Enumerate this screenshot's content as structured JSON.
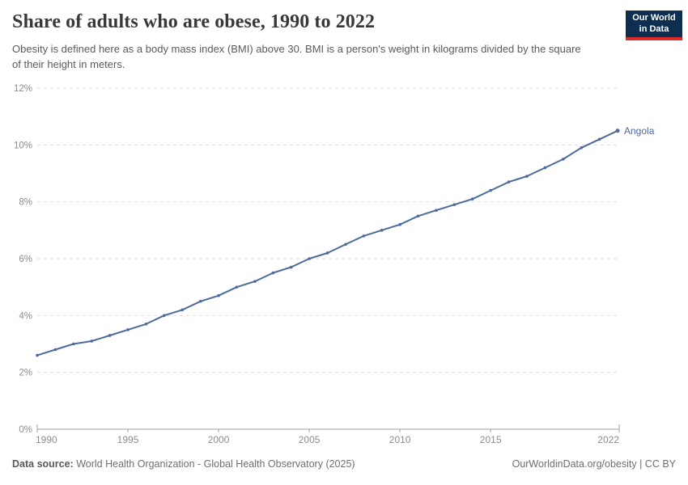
{
  "header": {
    "title": "Share of adults who are obese, 1990 to 2022",
    "subtitle": "Obesity is defined here as a body mass index (BMI) above 30. BMI is a person's weight in kilograms divided by the square of their height in meters.",
    "logo": {
      "line1": "Our World",
      "line2": "in Data",
      "bg_color": "#0D2E4E",
      "accent_color": "#DC2C2C"
    }
  },
  "chart_data": {
    "type": "line",
    "title": "Share of adults who are obese, 1990 to 2022",
    "x": [
      1990,
      1991,
      1992,
      1993,
      1994,
      1995,
      1996,
      1997,
      1998,
      1999,
      2000,
      2001,
      2002,
      2003,
      2004,
      2005,
      2006,
      2007,
      2008,
      2009,
      2010,
      2011,
      2012,
      2013,
      2014,
      2015,
      2016,
      2017,
      2018,
      2019,
      2020,
      2021,
      2022
    ],
    "series": [
      {
        "name": "Angola",
        "color": "#4C6A9C",
        "values": [
          2.6,
          2.8,
          3.0,
          3.1,
          3.3,
          3.5,
          3.7,
          4.0,
          4.2,
          4.5,
          4.7,
          5.0,
          5.2,
          5.5,
          5.7,
          6.0,
          6.2,
          6.5,
          6.8,
          7.0,
          7.2,
          7.5,
          7.7,
          7.9,
          8.1,
          8.4,
          8.7,
          8.9,
          9.2,
          9.5,
          9.9,
          10.2,
          10.5
        ]
      }
    ],
    "xlabel": "",
    "ylabel": "",
    "xlim": [
      1990,
      2022
    ],
    "ylim": [
      0,
      12
    ],
    "xticks": [
      1990,
      1995,
      2000,
      2005,
      2010,
      2015,
      2022
    ],
    "yticks": [
      0,
      2,
      4,
      6,
      8,
      10,
      12
    ],
    "ytick_suffix": "%",
    "grid": "horizontal-dashed",
    "legend_position": "end-of-line",
    "end_label": "Angola"
  },
  "footer": {
    "datasource_label": "Data source:",
    "datasource_value": " World Health Organization - Global Health Observatory (2025)",
    "credit": "OurWorldinData.org/obesity | CC BY"
  },
  "colors": {
    "grid": "#dcdcdc",
    "axis": "#a1a1a1",
    "tick_label": "#8c8c8c"
  }
}
